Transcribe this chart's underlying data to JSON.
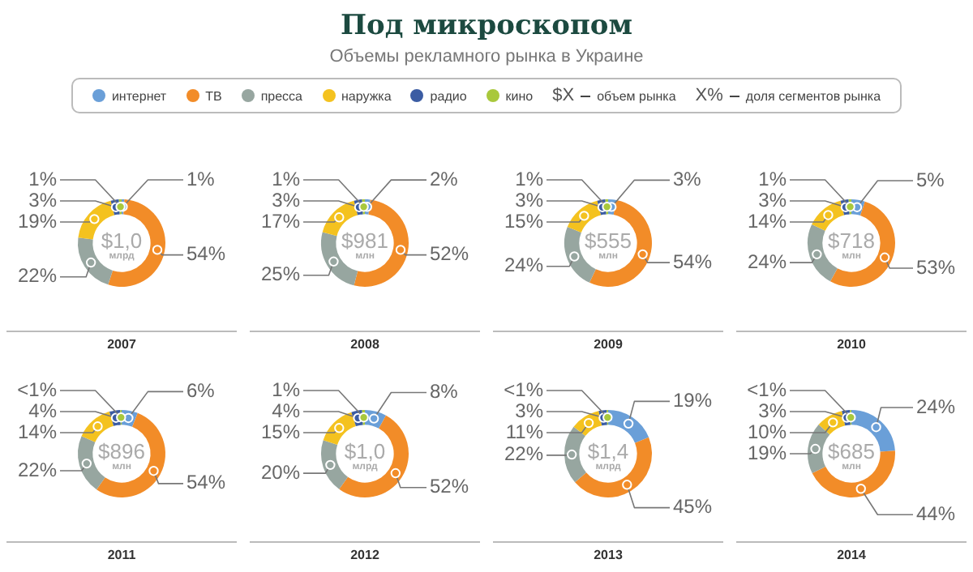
{
  "chart_data": [
    {
      "type": "other",
      "title": "Под микроскопом",
      "subtitle": "Объемы рекламного рынка в Украине",
      "annotations": [
        "$X",
        "объем рынка",
        "X%",
        "доля сегментов рынка"
      ]
    },
    {
      "type": "donut",
      "xlabel": "2007",
      "annotations": [
        "$1,0",
        "млрд"
      ],
      "legend": "top",
      "categories": [
        "интернет",
        "ТВ",
        "пресса",
        "наружка",
        "радио",
        "кино"
      ],
      "colors": [
        "#6a9fd8",
        "#f28c28",
        "#97a6a0",
        "#f4c21f",
        "#3b5ca3",
        "#a9c83c"
      ],
      "values": [
        1,
        54,
        22,
        19,
        3,
        1
      ],
      "value_labels": [
        "1%",
        "54%",
        "22%",
        "19%",
        "3%",
        "1%"
      ]
    },
    {
      "type": "donut",
      "xlabel": "2008",
      "annotations": [
        "$981",
        "млн"
      ],
      "categories": [
        null,
        null,
        null,
        null,
        null,
        null
      ],
      "colors": [
        "#6a9fd8",
        "#f28c28",
        "#97a6a0",
        "#f4c21f",
        "#3b5ca3",
        "#a9c83c"
      ],
      "values": [
        2,
        52,
        25,
        17,
        3,
        1
      ],
      "value_labels": [
        "2%",
        "52%",
        "25%",
        "17%",
        "3%",
        "1%"
      ]
    },
    {
      "type": "donut",
      "xlabel": "2009",
      "annotations": [
        "$555",
        "млн"
      ],
      "categories": [
        null,
        null,
        null,
        null,
        null,
        null
      ],
      "colors": [
        "#6a9fd8",
        "#f28c28",
        "#97a6a0",
        "#f4c21f",
        "#3b5ca3",
        "#a9c83c"
      ],
      "values": [
        3,
        54,
        24,
        15,
        3,
        1
      ],
      "value_labels": [
        "3%",
        "54%",
        "24%",
        "15%",
        "3%",
        "1%"
      ]
    },
    {
      "type": "donut",
      "xlabel": "2010",
      "annotations": [
        "$718",
        "млн"
      ],
      "categories": [
        null,
        null,
        null,
        null,
        null,
        null
      ],
      "colors": [
        "#6a9fd8",
        "#f28c28",
        "#97a6a0",
        "#f4c21f",
        "#3b5ca3",
        "#a9c83c"
      ],
      "values": [
        5,
        53,
        24,
        14,
        3,
        1
      ],
      "value_labels": [
        "5%",
        "53%",
        "24%",
        "14%",
        "3%",
        "1%"
      ]
    },
    {
      "type": "donut",
      "xlabel": "2011",
      "annotations": [
        "$896",
        "млн"
      ],
      "categories": [
        null,
        null,
        null,
        null,
        null,
        null
      ],
      "colors": [
        "#6a9fd8",
        "#f28c28",
        "#97a6a0",
        "#f4c21f",
        "#3b5ca3",
        "#a9c83c"
      ],
      "values": [
        6,
        54,
        22,
        14,
        4,
        0.5
      ],
      "value_labels": [
        "6%",
        "54%",
        "22%",
        "14%",
        "4%",
        "<1%"
      ]
    },
    {
      "type": "donut",
      "xlabel": "2012",
      "annotations": [
        "$1,0",
        "млрд"
      ],
      "categories": [
        null,
        null,
        null,
        null,
        null,
        null
      ],
      "colors": [
        "#6a9fd8",
        "#f28c28",
        "#97a6a0",
        "#f4c21f",
        "#3b5ca3",
        "#a9c83c"
      ],
      "values": [
        8,
        52,
        20,
        15,
        4,
        1
      ],
      "value_labels": [
        "8%",
        "52%",
        "20%",
        "15%",
        "4%",
        "1%"
      ]
    },
    {
      "type": "donut",
      "xlabel": "2013",
      "annotations": [
        "$1,4",
        "млрд"
      ],
      "categories": [
        null,
        null,
        null,
        null,
        null,
        null
      ],
      "colors": [
        "#6a9fd8",
        "#f28c28",
        "#97a6a0",
        "#f4c21f",
        "#3b5ca3",
        "#a9c83c"
      ],
      "values": [
        19,
        45,
        22,
        11,
        3,
        0.5
      ],
      "value_labels": [
        "19%",
        "45%",
        "22%",
        "11%",
        "3%",
        "<1%"
      ]
    },
    {
      "type": "donut",
      "xlabel": "2014",
      "annotations": [
        "$685",
        "млн"
      ],
      "categories": [
        null,
        null,
        null,
        null,
        null,
        null
      ],
      "colors": [
        "#6a9fd8",
        "#f28c28",
        "#97a6a0",
        "#f4c21f",
        "#3b5ca3",
        "#a9c83c"
      ],
      "values": [
        24,
        44,
        19,
        10,
        3,
        0.5
      ],
      "value_labels": [
        "24%",
        "44%",
        "19%",
        "10%",
        "3%",
        "<1%"
      ]
    }
  ]
}
